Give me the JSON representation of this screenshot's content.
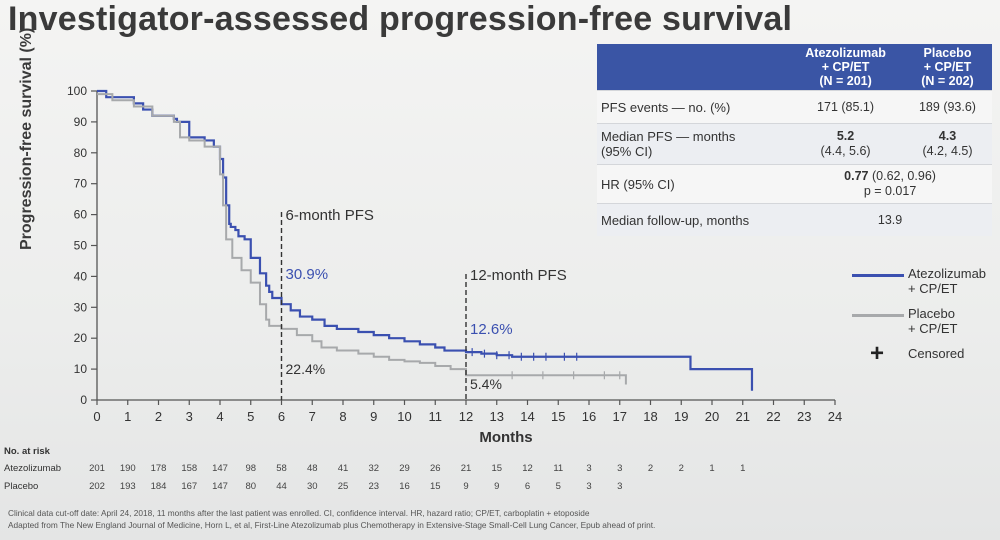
{
  "title": "Investigator-assessed progression-free survival",
  "chart_data": {
    "type": "line",
    "title": "Investigator-assessed progression-free survival",
    "xlabel": "Months",
    "ylabel": "Progression-free survival (%)",
    "xlim": [
      0,
      24
    ],
    "ylim": [
      0,
      100
    ],
    "xticks": [
      0,
      1,
      2,
      3,
      4,
      5,
      6,
      7,
      8,
      9,
      10,
      11,
      12,
      13,
      14,
      15,
      16,
      17,
      18,
      19,
      20,
      21,
      22,
      23,
      24
    ],
    "yticks": [
      0,
      10,
      20,
      30,
      40,
      50,
      60,
      70,
      80,
      90,
      100
    ],
    "series": [
      {
        "name": "Atezolizumab + CP/ET",
        "color": "#3b50b0",
        "x": [
          0,
          0.3,
          1.2,
          1.5,
          1.8,
          2.5,
          2.6,
          3.0,
          3.5,
          3.8,
          4.0,
          4.1,
          4.2,
          4.3,
          4.35,
          4.5,
          4.6,
          4.8,
          5.0,
          5.3,
          5.5,
          5.6,
          5.7,
          6.0,
          6.3,
          6.6,
          7.0,
          7.4,
          7.8,
          8.5,
          9.0,
          9.5,
          10.0,
          10.5,
          11.0,
          11.3,
          12.0,
          12.5,
          13.0,
          13.5,
          14.0,
          15.0,
          16.0,
          17.0,
          18.0,
          19.0,
          19.3,
          20.5,
          21.0,
          21.3
        ],
        "y": [
          100,
          98,
          96,
          94,
          92,
          91,
          90,
          85,
          84,
          82,
          78,
          72,
          63,
          57,
          56,
          55,
          53,
          52,
          46,
          41,
          37,
          35,
          33,
          31,
          29,
          27,
          26,
          24,
          23,
          22,
          21,
          20,
          19,
          18,
          17,
          16,
          15.5,
          15,
          14.5,
          14,
          14,
          14,
          14,
          14,
          14,
          14,
          10,
          10,
          10,
          3
        ]
      },
      {
        "name": "Placebo + CP/ET",
        "color": "#a7a9ab",
        "x": [
          0,
          0.5,
          1.2,
          1.8,
          2.5,
          2.7,
          3.0,
          3.5,
          4.0,
          4.1,
          4.2,
          4.4,
          4.7,
          5.0,
          5.3,
          5.5,
          5.6,
          6.0,
          6.5,
          7.0,
          7.3,
          7.8,
          8.5,
          9.0,
          9.5,
          10.0,
          10.5,
          11.0,
          11.5,
          12.0,
          13.0,
          14.0,
          15.0,
          16.0,
          17.0,
          17.2
        ],
        "y": [
          99,
          97,
          95,
          92,
          90,
          85,
          84,
          82,
          73,
          63,
          52,
          46,
          42,
          38,
          31,
          26,
          24,
          23,
          21,
          19,
          17,
          16,
          15,
          14,
          13,
          12.5,
          12,
          11,
          10,
          8,
          8,
          8,
          8,
          8,
          8,
          5
        ]
      }
    ],
    "annotations": {
      "six_month": {
        "label": "6-month PFS",
        "atezolizumab": "30.9%",
        "placebo": "22.4%"
      },
      "twelve_month": {
        "label": "12-month PFS",
        "atezolizumab": "12.6%",
        "placebo": "5.4%"
      }
    },
    "legend": [
      {
        "label_line1": "Atezolizumab",
        "label_line2": "+ CP/ET",
        "color": "#3b50b0"
      },
      {
        "label_line1": "Placebo",
        "label_line2": "+ CP/ET",
        "color": "#a7a9ab"
      },
      {
        "symbol": "+",
        "label_line1": "Censored",
        "label_line2": ""
      }
    ],
    "legend_position": "right"
  },
  "table": {
    "col_atezo": [
      "Atezolizumab",
      "+ CP/ET",
      "(N = 201)"
    ],
    "col_placebo": [
      "Placebo",
      "+ CP/ET",
      "(N = 202)"
    ],
    "rows": [
      {
        "label": "PFS events — no. (%)",
        "atezo": "171 (85.1)",
        "placebo": "189 (93.6)"
      },
      {
        "label_line1": "Median PFS — months",
        "label_line2": "(95% CI)",
        "atezo_bold": "5.2",
        "atezo_ci": "(4.4, 5.6)",
        "placebo_bold": "4.3",
        "placebo_ci": "(4.2, 4.5)"
      },
      {
        "label": "HR (95% CI)",
        "value_bold": "0.77",
        "value_ci": "(0.62, 0.96)",
        "value_p": "p = 0.017"
      },
      {
        "label": "Median follow-up, months",
        "value": "13.9"
      }
    ]
  },
  "risk_table": {
    "title": "No. at risk",
    "rows": [
      {
        "name": "Atezolizumab",
        "values": [
          "201",
          "190",
          "178",
          "158",
          "147",
          "98",
          "58",
          "48",
          "41",
          "32",
          "29",
          "26",
          "21",
          "15",
          "12",
          "11",
          "3",
          "3",
          "2",
          "2",
          "1",
          "1"
        ]
      },
      {
        "name": "Placebo",
        "values": [
          "202",
          "193",
          "184",
          "167",
          "147",
          "80",
          "44",
          "30",
          "25",
          "23",
          "16",
          "15",
          "9",
          "9",
          "6",
          "5",
          "3",
          "3"
        ]
      }
    ]
  },
  "footnote": {
    "line1": "Clinical data cut-off date: April 24, 2018, 11 months after the last patient was enrolled. CI, confidence interval. HR, hazard ratio; CP/ET, carboplatin + etoposide",
    "line2": "Adapted from The New England Journal of Medicine, Horn L, et al, First-Line Atezolizumab plus Chemotherapy in Extensive-Stage Small-Cell Lung Cancer, Epub ahead of print."
  }
}
